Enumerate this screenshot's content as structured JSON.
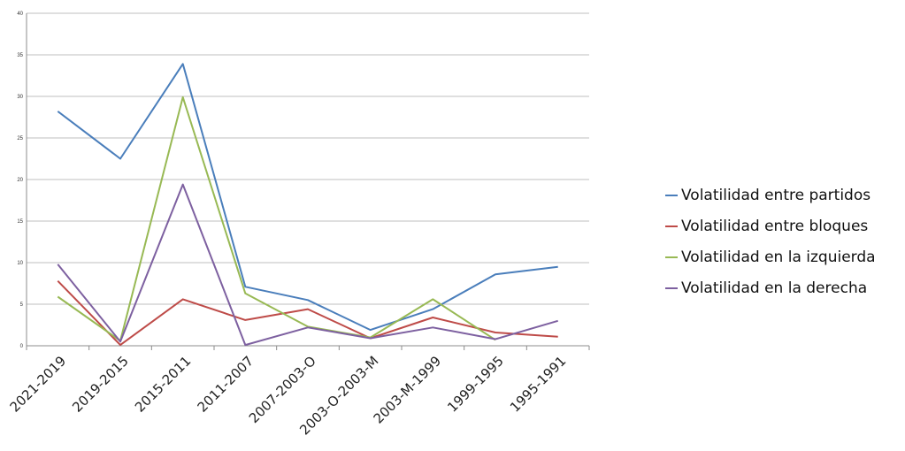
{
  "chart_data": {
    "type": "line",
    "categories": [
      "2021-2019",
      "2019-2015",
      "2015-2011",
      "2011-2007",
      "2007-2003-O",
      "2003-O-2003-M",
      "2003-M-1999",
      "1999-1995",
      "1995-1991"
    ],
    "series": [
      {
        "name": "Volatilidad entre partidos",
        "color": "#4a7ebb",
        "values": [
          28.2,
          22.5,
          33.9,
          7.1,
          5.5,
          1.9,
          4.4,
          8.6,
          9.5
        ]
      },
      {
        "name": "Volatilidad entre bloques",
        "color": "#be4b48",
        "values": [
          7.8,
          0.1,
          5.6,
          3.1,
          4.4,
          0.9,
          3.4,
          1.6,
          1.1
        ]
      },
      {
        "name": "Volatilidad en la izquierda",
        "color": "#98b954",
        "values": [
          5.9,
          0.6,
          29.9,
          6.3,
          2.3,
          1.0,
          5.6,
          0.7,
          null
        ]
      },
      {
        "name": "Volatilidad en la derecha",
        "color": "#7d60a0",
        "values": [
          9.8,
          0.5,
          19.4,
          0.1,
          2.2,
          0.9,
          2.2,
          0.8,
          3.0
        ]
      }
    ],
    "yticks": [
      "0",
      "5",
      "10",
      "15",
      "20",
      "25",
      "30",
      "35",
      "40"
    ],
    "ylim": [
      0,
      40
    ],
    "grid": true,
    "legend_position": "right"
  }
}
